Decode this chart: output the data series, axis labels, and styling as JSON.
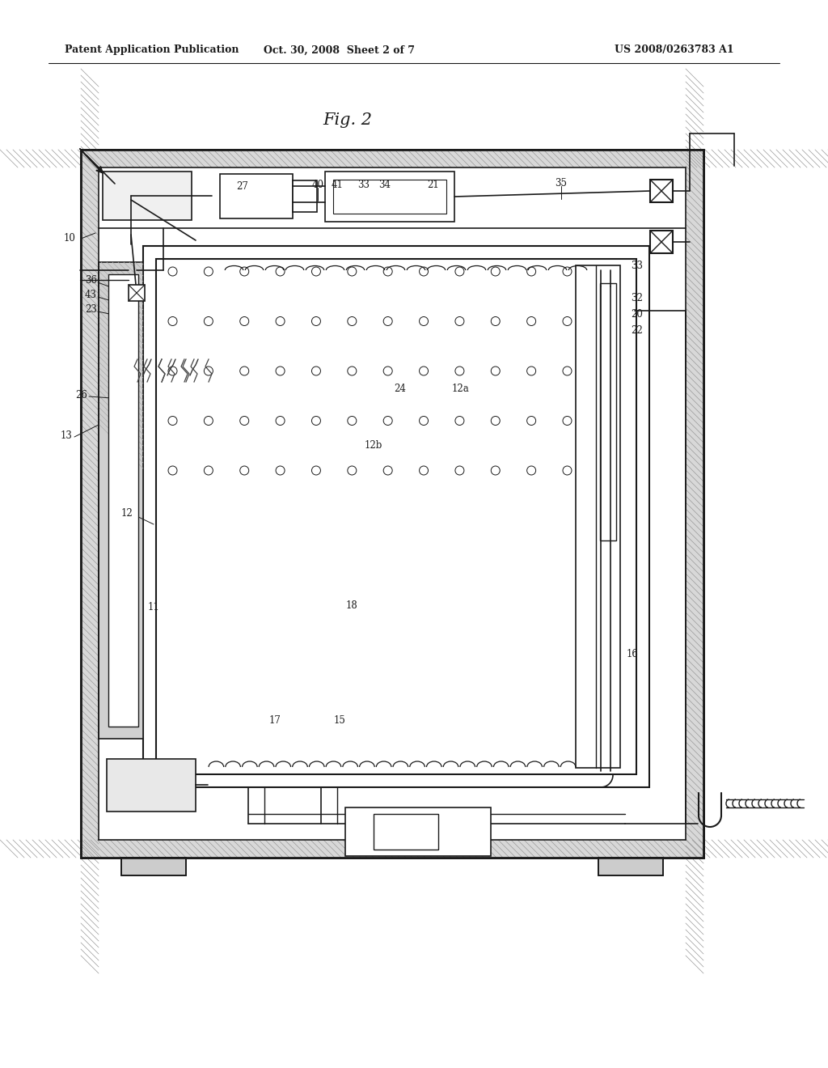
{
  "bg_color": "#ffffff",
  "line_color": "#1a1a1a",
  "header_left": "Patent Application Publication",
  "header_mid": "Oct. 30, 2008  Sheet 2 of 7",
  "header_right": "US 2008/0263783 A1",
  "fig_label": "Fig. 2",
  "label_fontsize": 8.5,
  "header_fontsize": 9.0,
  "fig_fontsize": 15
}
